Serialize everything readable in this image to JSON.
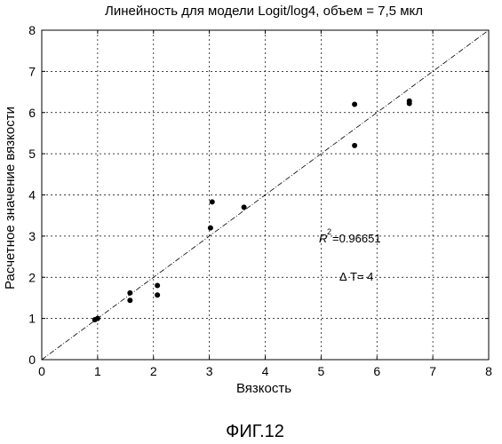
{
  "figure_caption": "ФИГ.12",
  "chart_data": {
    "type": "scatter",
    "title": "Линейность для модели Logit/log4, объем = 7,5 мкл",
    "xlabel": "Вязкость",
    "ylabel": "Расчетное значение вязкости",
    "xlim": [
      0,
      8
    ],
    "ylim": [
      0,
      8
    ],
    "xticks": [
      "0",
      "1",
      "2",
      "3",
      "4",
      "5",
      "6",
      "7",
      "8"
    ],
    "yticks": [
      "0",
      "1",
      "2",
      "3",
      "4",
      "5",
      "6",
      "7",
      "8"
    ],
    "grid": true,
    "reference_line": {
      "from": [
        0,
        0
      ],
      "to": [
        8,
        8
      ],
      "style": "dash-dot"
    },
    "points": [
      {
        "x": 0.95,
        "y": 0.97
      },
      {
        "x": 1.0,
        "y": 1.0
      },
      {
        "x": 1.58,
        "y": 1.62
      },
      {
        "x": 1.58,
        "y": 1.44
      },
      {
        "x": 2.07,
        "y": 1.8
      },
      {
        "x": 2.07,
        "y": 1.57
      },
      {
        "x": 3.02,
        "y": 3.2
      },
      {
        "x": 3.05,
        "y": 3.83
      },
      {
        "x": 3.62,
        "y": 3.7
      },
      {
        "x": 5.6,
        "y": 6.2
      },
      {
        "x": 5.6,
        "y": 5.2
      },
      {
        "x": 6.58,
        "y": 6.28
      },
      {
        "x": 6.58,
        "y": 6.22
      }
    ],
    "annotations": {
      "r2_symbol": "R",
      "r2_superscript": "2",
      "r2_value": "=0.96651",
      "delta_symbol": "Δ",
      "delta_text": "T= 4"
    }
  }
}
